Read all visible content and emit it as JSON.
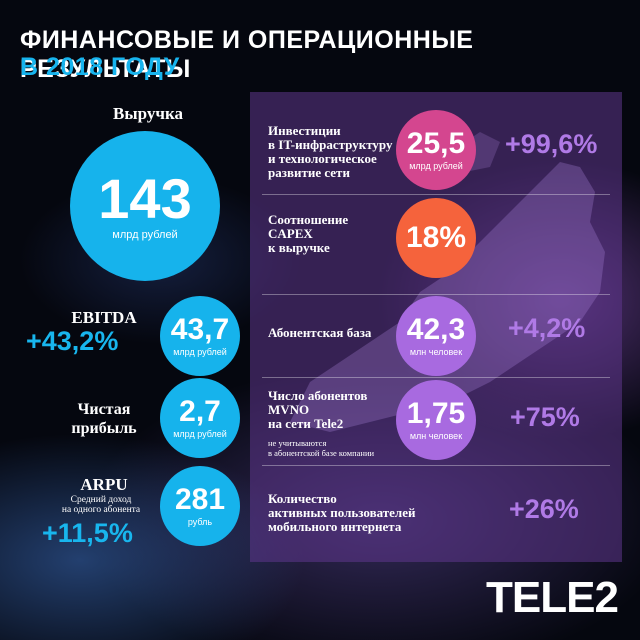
{
  "header": {
    "line1": "ФИНАНСОВЫЕ И ОПЕРАЦИОННЫЕ РЕЗУЛЬТАТЫ",
    "line2": "В 2018 ГОДУ"
  },
  "revenue": {
    "label": "Выручка",
    "value": "143",
    "unit": "млрд рублей"
  },
  "ebitda": {
    "label": "EBITDA",
    "change": "+43,2%",
    "value": "43,7",
    "unit": "млрд рублей"
  },
  "net_profit": {
    "label_line1": "Чистая",
    "label_line2": "прибыль",
    "value": "2,7",
    "unit": "млрд рублей"
  },
  "arpu": {
    "label": "ARPU",
    "sub_line1": "Средний доход",
    "sub_line2": "на одного абонента",
    "change": "+11,5%",
    "value": "281",
    "unit": "рубль"
  },
  "investments": {
    "desc": [
      "Инвестиции",
      "в IT-инфраструктуру",
      "и технологическое",
      "развитие сети"
    ],
    "value": "25,5",
    "unit": "млрд рублей",
    "change": "+99,6%"
  },
  "capex": {
    "desc": [
      "Соотношение",
      "CAPEX",
      "к выручке"
    ],
    "value": "18%"
  },
  "subscribers": {
    "desc": [
      "Абонентская база"
    ],
    "value": "42,3",
    "unit": "млн человек",
    "change": "+4,2%"
  },
  "mvno": {
    "desc": [
      "Число абонентов",
      "MVNO",
      "на сети Tele2"
    ],
    "note": [
      "не учитываются",
      "в абонентской базе компании"
    ],
    "value": "1,75",
    "unit": "млн человек",
    "change": "+75%"
  },
  "mobile_internet": {
    "desc": [
      "Количество",
      "активных пользователей",
      "мобильного интернета"
    ],
    "change": "+26%"
  },
  "logo": {
    "text": "TELE2"
  },
  "colors": {
    "blue": "#16b3ec",
    "pink": "#d4468f",
    "orange": "#f5633c",
    "violet": "#a86ae0",
    "lilac_text": "#b07ae6"
  }
}
